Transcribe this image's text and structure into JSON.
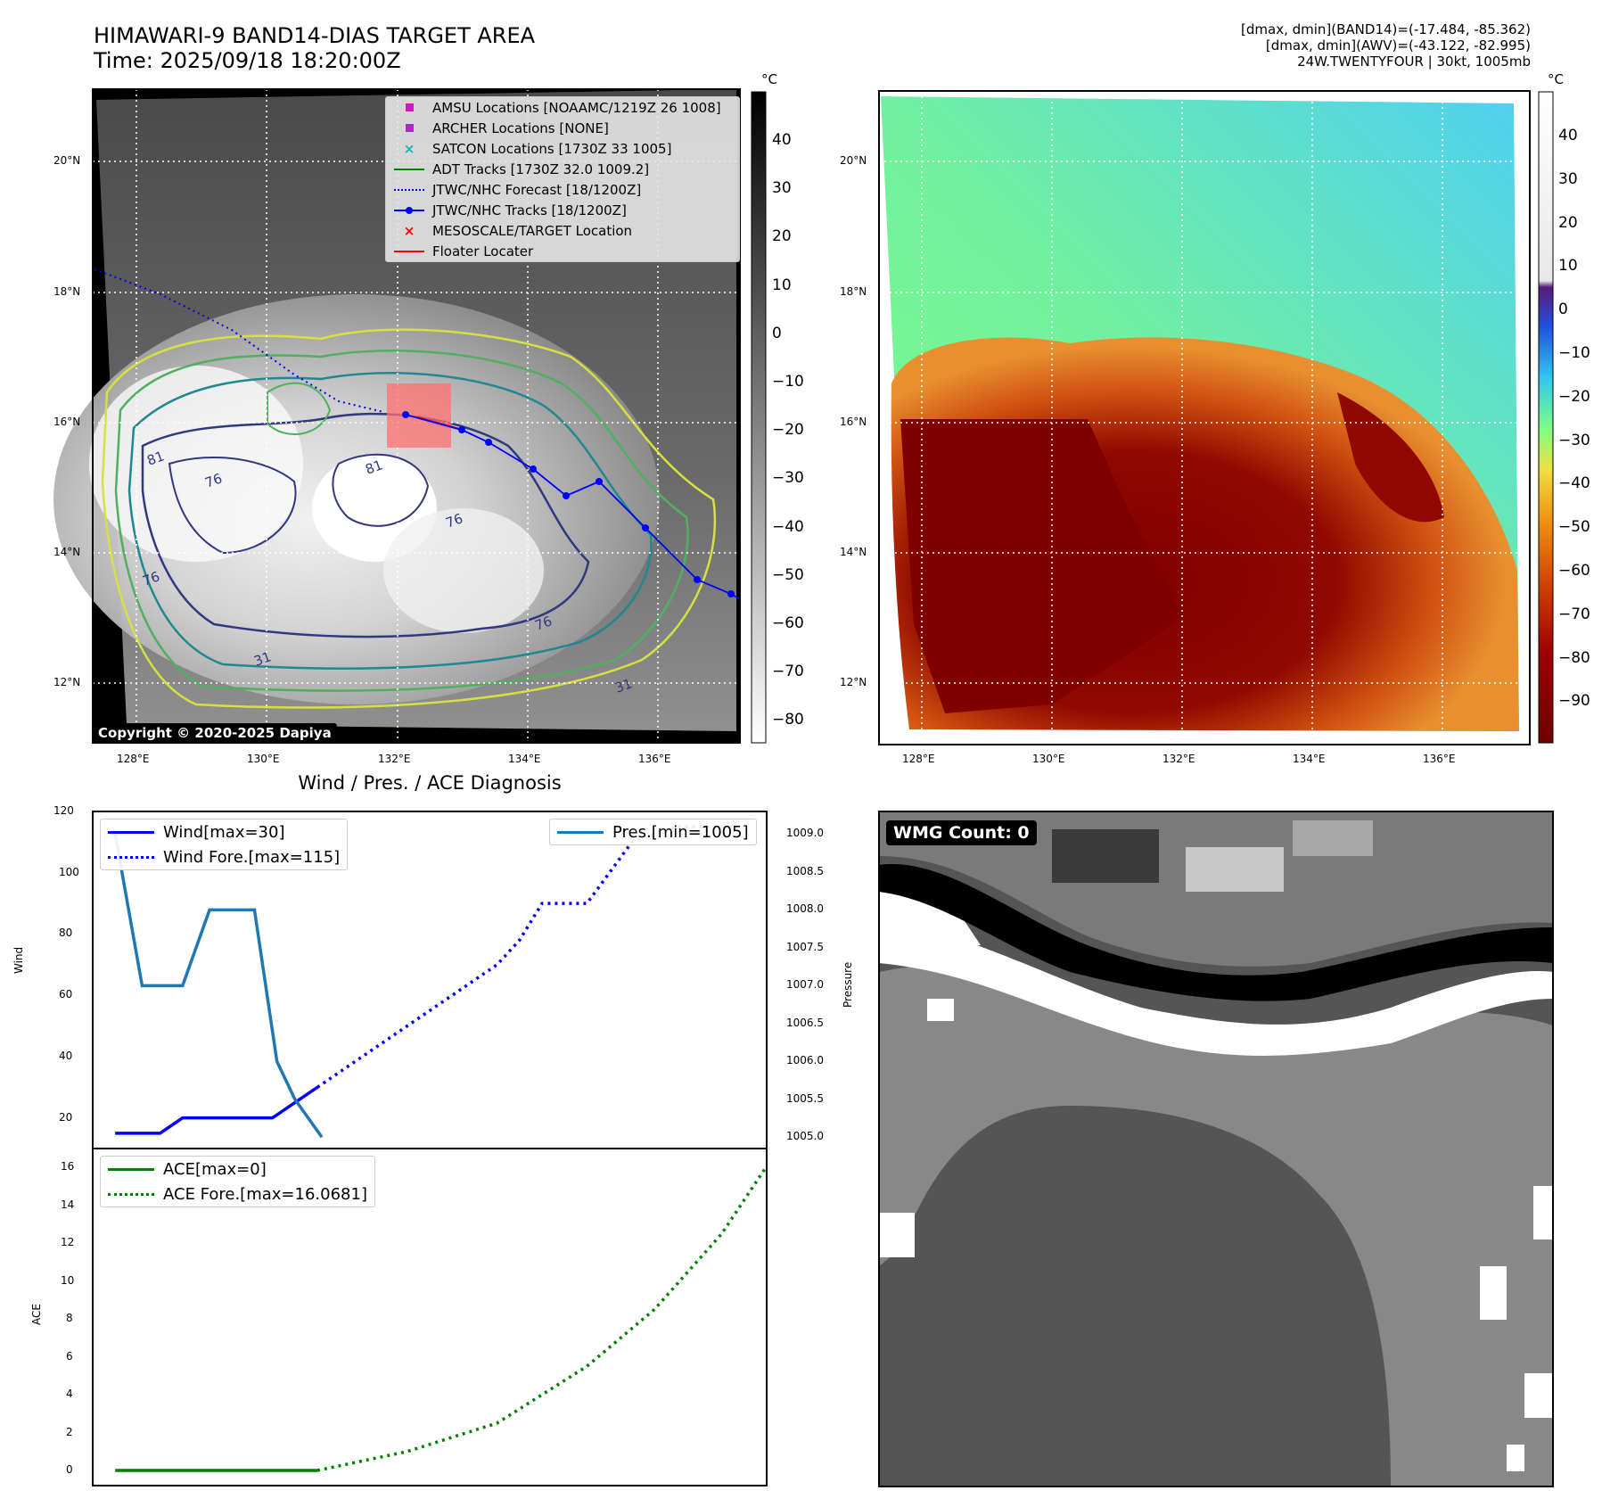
{
  "header": {
    "title_line1": "HIMAWARI-9 BAND14-DIAS TARGET AREA",
    "title_line2": "Time: 2025/09/18 18:20:00Z",
    "info_line1": "[dmax, dmin](BAND14)=(-17.484, -85.362)",
    "info_line2": "[dmax, dmin](AWV)=(-43.122, -82.995)",
    "info_line3": "24W.TWENTYFOUR | 30kt, 1005mb"
  },
  "ir_panel": {
    "lat_labels": [
      "20°N",
      "18°N",
      "16°N",
      "14°N",
      "12°N"
    ],
    "lon_labels": [
      "128°E",
      "130°E",
      "132°E",
      "134°E",
      "136°E"
    ],
    "colorbar_unit": "°C",
    "colorbar_ticks": [
      "40",
      "30",
      "20",
      "10",
      "0",
      "−10",
      "−20",
      "−30",
      "−40",
      "−50",
      "−60",
      "−70",
      "−80"
    ],
    "copyright": "Copyright © 2020-2025 Dapiya",
    "legend": [
      {
        "label": "AMSU Locations [NOAAMC/1219Z 26 1008]",
        "symbol": "square",
        "color": "#c020c0"
      },
      {
        "label": "ARCHER Locations [NONE]",
        "symbol": "square",
        "color": "#c020c0"
      },
      {
        "label": "SATCON Locations [1730Z 33 1005]",
        "symbol": "x",
        "color": "#20b0b0"
      },
      {
        "label": "ADT Tracks [1730Z 32.0 1009.2]",
        "symbol": "line",
        "color": "#008000"
      },
      {
        "label": "JTWC/NHC Forecast [18/1200Z]",
        "symbol": "dotted",
        "color": "#0000ff"
      },
      {
        "label": "JTWC/NHC Tracks [18/1200Z]",
        "symbol": "line-dot",
        "color": "#0000ff"
      },
      {
        "label": "MESOSCALE/TARGET Location",
        "symbol": "x",
        "color": "#ff0000"
      },
      {
        "label": "Floater Locater",
        "symbol": "line",
        "color": "#ff0000"
      }
    ],
    "contour_labels": [
      "81",
      "76",
      "81",
      "76",
      "76",
      "31",
      "76",
      "31"
    ]
  },
  "color_panel": {
    "lat_labels": [
      "20°N",
      "18°N",
      "16°N",
      "14°N",
      "12°N"
    ],
    "lon_labels": [
      "128°E",
      "130°E",
      "132°E",
      "134°E",
      "136°E"
    ],
    "colorbar_unit": "°C",
    "colorbar_ticks": [
      "40",
      "30",
      "20",
      "10",
      "0",
      "−10",
      "−20",
      "−30",
      "−40",
      "−50",
      "−60",
      "−70",
      "−80",
      "−90"
    ]
  },
  "chart_data": [
    {
      "type": "line",
      "title": "Wind / Pres. / ACE Diagnosis",
      "ylabel": "Wind",
      "ylabel_right": "Pressure",
      "ylim": [
        10,
        120
      ],
      "ylim_right": [
        1004.85,
        1009.3
      ],
      "yticks": [
        "120",
        "100",
        "80",
        "60",
        "40",
        "20"
      ],
      "yticks_right": [
        "1009.0",
        "1008.5",
        "1008.0",
        "1007.5",
        "1007.0",
        "1006.5",
        "1006.0",
        "1005.5",
        "1005.0"
      ],
      "xlim": [
        0,
        30
      ],
      "series": [
        {
          "name": "Wind[max=30]",
          "axis": "left",
          "style": "solid",
          "color": "#0000ff",
          "x": [
            1,
            3,
            4,
            6,
            8,
            10
          ],
          "values": [
            15,
            15,
            20,
            20,
            20,
            30
          ]
        },
        {
          "name": "Wind Fore.[max=115]",
          "axis": "left",
          "style": "dotted",
          "color": "#0000ff",
          "x": [
            10,
            13,
            16,
            18,
            19,
            20,
            22,
            24,
            26,
            29
          ],
          "values": [
            30,
            45,
            60,
            70,
            78,
            90,
            90,
            110,
            115,
            115
          ]
        },
        {
          "name": "Pres.[min=1005]",
          "axis": "right",
          "style": "solid",
          "color": "#1f77b4",
          "x": [
            1,
            2.2,
            3,
            4,
            5.2,
            6,
            7.2,
            8.2,
            9,
            10.2
          ],
          "values": [
            1009.0,
            1007.0,
            1007.0,
            1007.0,
            1008.0,
            1008.0,
            1008.0,
            1006.0,
            1005.5,
            1005.0
          ]
        }
      ]
    },
    {
      "type": "line",
      "ylabel": "ACE",
      "ylim": [
        -0.8,
        17
      ],
      "yticks": [
        "16",
        "14",
        "12",
        "10",
        "8",
        "6",
        "4",
        "2",
        "0"
      ],
      "xlim": [
        0,
        30
      ],
      "series": [
        {
          "name": "ACE[max=0]",
          "style": "solid",
          "color": "#008000",
          "x": [
            1,
            10
          ],
          "values": [
            0,
            0
          ]
        },
        {
          "name": "ACE Fore.[max=16.0681]",
          "style": "dotted",
          "color": "#008000",
          "x": [
            10,
            14,
            18,
            22,
            25,
            28,
            30
          ],
          "values": [
            0,
            1,
            2.5,
            5.5,
            8.5,
            12.5,
            16.07
          ]
        }
      ]
    }
  ],
  "wmg_panel": {
    "label": "WMG Count: 0"
  }
}
